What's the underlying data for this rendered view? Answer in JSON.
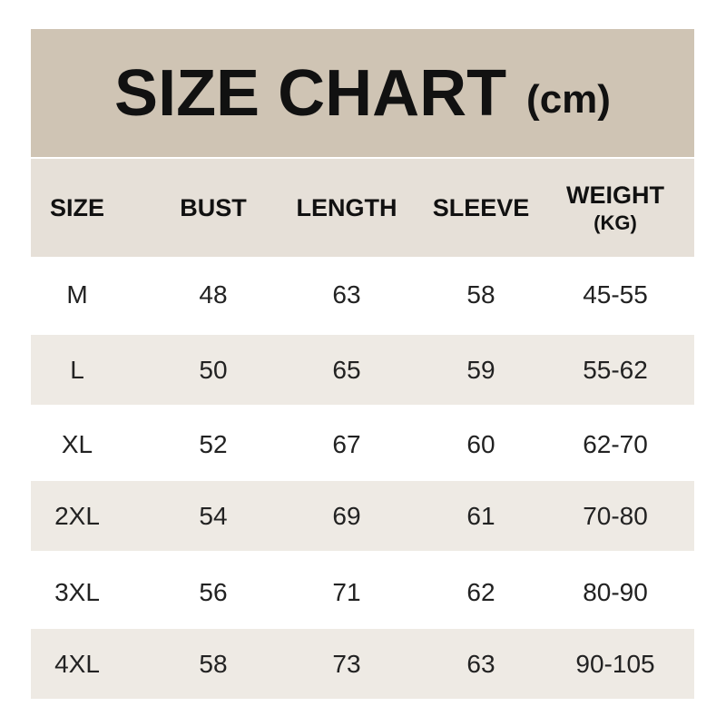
{
  "title": {
    "main": "SIZE CHART",
    "unit": "(cm)"
  },
  "colors": {
    "title_bg": "#cfc4b4",
    "header_bg": "#e6e0d8",
    "row_shade": "#eeeae4"
  },
  "headers": [
    "SIZE",
    "BUST",
    "LENGTH",
    "SLEEVE",
    "WEIGHT"
  ],
  "weight_unit": "(KG)",
  "rows": [
    [
      "M",
      "48",
      "63",
      "58",
      "45-55"
    ],
    [
      "L",
      "50",
      "65",
      "59",
      "55-62"
    ],
    [
      "XL",
      "52",
      "67",
      "60",
      "62-70"
    ],
    [
      "2XL",
      "54",
      "69",
      "61",
      "70-80"
    ],
    [
      "3XL",
      "56",
      "71",
      "62",
      "80-90"
    ],
    [
      "4XL",
      "58",
      "73",
      "63",
      "90-105"
    ]
  ]
}
